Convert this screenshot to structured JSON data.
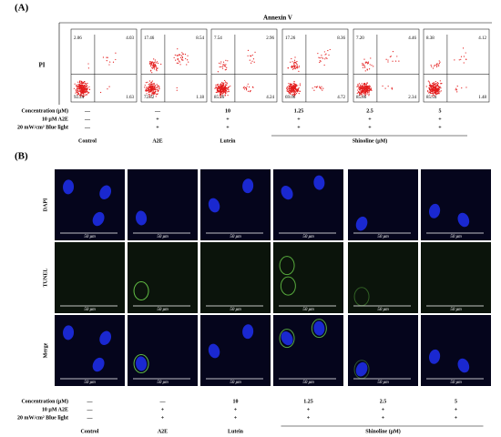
{
  "panel_a": {
    "label": "(A)",
    "x_axis_label": "Annexin V",
    "y_axis_label": "PI",
    "plots": [
      {
        "upper_left": "2.06",
        "upper_right": "4.03",
        "lower_left": "92.24",
        "lower_right": "1.63"
      },
      {
        "upper_left": "17.46",
        "upper_right": "8.54",
        "lower_left": "72.82",
        "lower_right": "1.18"
      },
      {
        "upper_left": "7.54",
        "upper_right": "2.96",
        "lower_left": "85.26",
        "lower_right": "4.24"
      },
      {
        "upper_left": "17.26",
        "upper_right": "8.36",
        "lower_left": "69.06",
        "lower_right": "4.72"
      },
      {
        "upper_left": "7.20",
        "upper_right": "4.46",
        "lower_left": "85.86",
        "lower_right": "2.34"
      },
      {
        "upper_left": "8.38",
        "upper_right": "4.12",
        "lower_left": "85.54",
        "lower_right": "1.48"
      }
    ]
  },
  "panel_b": {
    "label": "(B)",
    "row_labels": [
      "DAPI",
      "TUNEL",
      "Merge"
    ],
    "scale_bar": "50 μm"
  },
  "treatments": {
    "row_labels": [
      "Concentration (μM)",
      "10 μM  A2E",
      "20 mW/cm² Blue light"
    ],
    "columns": [
      [
        "—",
        "—",
        "—"
      ],
      [
        "—",
        "+",
        "+"
      ],
      [
        "10",
        "+",
        "+"
      ],
      [
        "1.25",
        "+",
        "+"
      ],
      [
        "2.5",
        "+",
        "+"
      ],
      [
        "5",
        "+",
        "+"
      ]
    ],
    "groups": [
      "Control",
      "A2E",
      "Lutein",
      "Shinoline (μM)"
    ]
  }
}
